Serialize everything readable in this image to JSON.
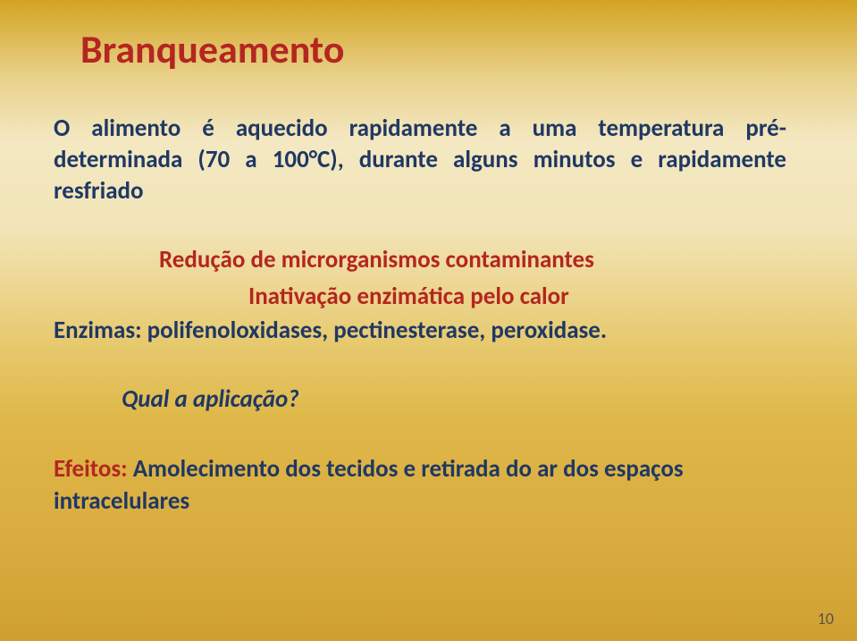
{
  "colors": {
    "title": "#b42620",
    "body": "#1f3864",
    "accent": "#b42620",
    "pageNum": "#5c5244",
    "bg_gradient": [
      "#d3a422",
      "#e9d18b",
      "#f4e8c2",
      "#f2e5b9",
      "#e6c769",
      "#dfb849",
      "#dcb143",
      "#d9ac3f",
      "#cf9f31"
    ]
  },
  "typography": {
    "title_fontsize": 44,
    "body_fontsize": 27,
    "pagenum_fontsize": 18,
    "title_weight": 700,
    "body_weight": 700
  },
  "title": "Branqueamento",
  "para1": "O alimento é aquecido rapidamente a uma temperatura pré-determinada (70 a 100°C), durante alguns minutos e rapidamente resfriado",
  "para2": "Redução de microrganismos contaminantes",
  "para3": "Inativação enzimática pelo calor",
  "para4": "Enzimas: polifenoloxidases, pectinesterase, peroxidase.",
  "para5": "Qual a aplicação?",
  "para6_label": "Efeitos: ",
  "para6_text": "Amolecimento dos tecidos e retirada do ar dos espaços intracelulares",
  "page_number": "10"
}
